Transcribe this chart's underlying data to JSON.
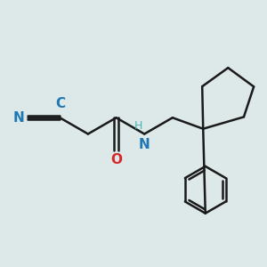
{
  "background_color": "#dde8e8",
  "bond_color": "#1a1a1a",
  "bond_width": 1.8,
  "N_color": "#1f77b4",
  "NH_color": "#4ab5b5",
  "O_color": "#d62728",
  "figsize": [
    3.0,
    3.0
  ],
  "dpi": 100,
  "xlim": [
    0.0,
    5.8
  ],
  "ylim": [
    0.2,
    4.2
  ]
}
